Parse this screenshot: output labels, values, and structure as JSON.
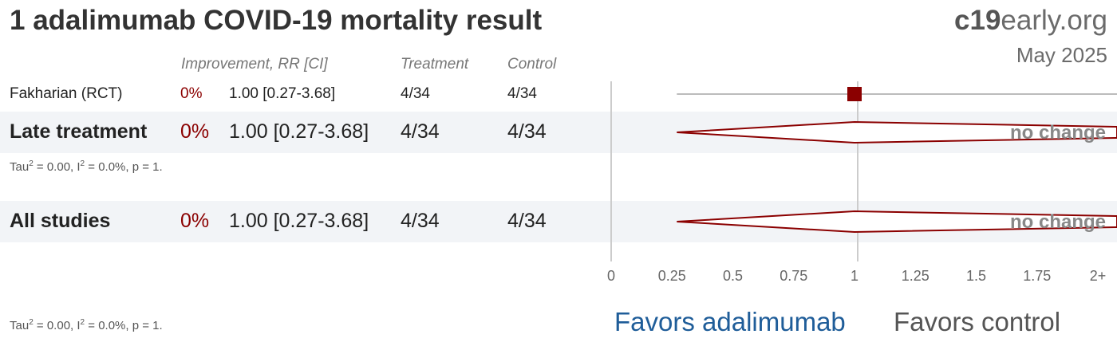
{
  "header": {
    "title": "1 adalimumab COVID-19 mortality result",
    "brand_bold": "c19",
    "brand_rest": "early.org",
    "date": "May 2025"
  },
  "columns": {
    "improvement": "Improvement, RR [CI]",
    "treatment": "Treatment",
    "control": "Control"
  },
  "study": {
    "name": "Fakharian (RCT)",
    "improvement": "0%",
    "rr_ci": "1.00 [0.27-3.68]",
    "treatment": "4/34",
    "control": "4/34"
  },
  "late": {
    "name": "Late treatment",
    "improvement": "0%",
    "rr_ci": "1.00 [0.27-3.68]",
    "treatment": "4/34",
    "control": "4/34",
    "tau_prefix": "Tau",
    "tau_sup": "2",
    "tau_mid": " = 0.00, I",
    "i_sup": "2",
    "tau_suffix": " = 0.0%, p = 1.",
    "effect_label": "no change"
  },
  "all": {
    "name": "All studies",
    "improvement": "0%",
    "rr_ci": "1.00 [0.27-3.68]",
    "treatment": "4/34",
    "control": "4/34",
    "tau_prefix": "Tau",
    "tau_sup": "2",
    "tau_mid": " = 0.00, I",
    "i_sup": "2",
    "tau_suffix": " = 0.0%, p = 1.",
    "effect_label": "no change"
  },
  "favors": {
    "treatment": "Favors adalimumab",
    "control": "Favors control"
  },
  "colors": {
    "accent": "#8b0000",
    "favors_treatment": "#1f5d99",
    "band": "#f2f4f7"
  },
  "chart_data": {
    "type": "forest",
    "x_ticks": [
      "0",
      "0.25",
      "0.5",
      "0.75",
      "1",
      "1.25",
      "1.5",
      "1.75",
      "2+"
    ],
    "xlim": [
      0,
      2
    ],
    "rows": [
      {
        "name": "Fakharian (RCT)",
        "kind": "study",
        "rr": 1.0,
        "ci": [
          0.27,
          3.68
        ]
      },
      {
        "name": "Late treatment",
        "kind": "summary",
        "rr": 1.0,
        "ci": [
          0.27,
          3.68
        ]
      },
      {
        "name": "All studies",
        "kind": "summary",
        "rr": 1.0,
        "ci": [
          0.27,
          3.68
        ]
      }
    ]
  }
}
